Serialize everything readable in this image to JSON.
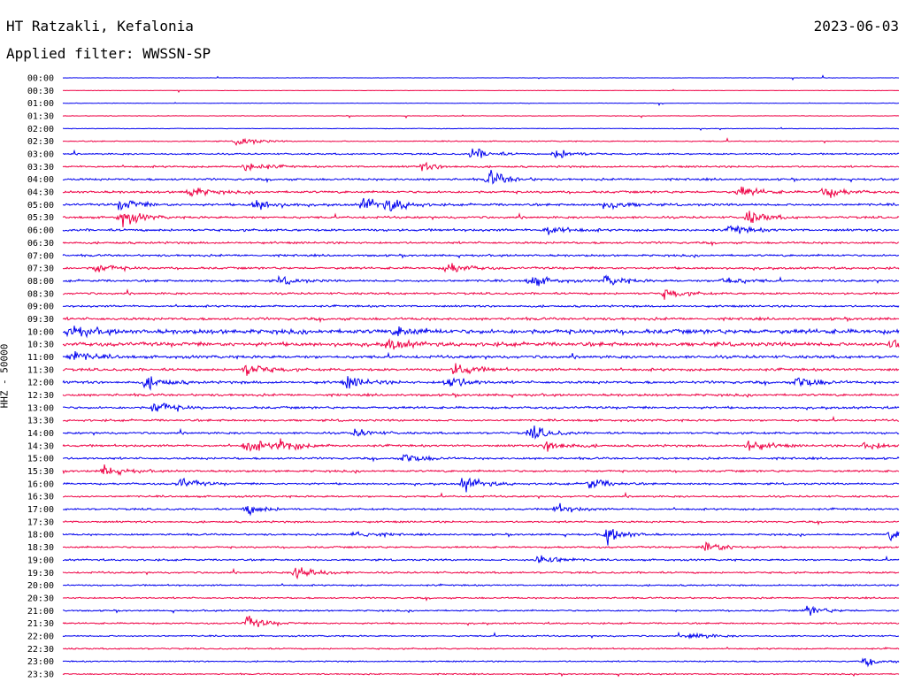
{
  "header": {
    "station": "HT Ratzakli, Kefalonia",
    "date": "2023-06-03",
    "filter": "Applied filter: WWSSN-SP"
  },
  "chart_data": {
    "type": "line",
    "title": "HT Ratzakli, Kefalonia",
    "ylabel": "HHZ - 50000",
    "colors": [
      "#0000ee",
      "#ee0044"
    ],
    "rows": [
      "00:00",
      "00:30",
      "01:00",
      "01:30",
      "02:00",
      "02:30",
      "03:00",
      "03:30",
      "04:00",
      "04:30",
      "05:00",
      "05:30",
      "06:00",
      "06:30",
      "07:00",
      "07:30",
      "08:00",
      "08:30",
      "09:00",
      "09:30",
      "10:00",
      "10:30",
      "11:00",
      "11:30",
      "12:00",
      "12:30",
      "13:00",
      "13:30",
      "14:00",
      "14:30",
      "15:00",
      "15:30",
      "16:00",
      "16:30",
      "17:00",
      "17:30",
      "18:00",
      "18:30",
      "19:00",
      "19:30",
      "20:00",
      "20:30",
      "21:00",
      "21:30",
      "22:00",
      "22:30",
      "23:00",
      "23:30"
    ],
    "noise_level": [
      0.3,
      0.3,
      0.4,
      0.4,
      0.5,
      0.8,
      1.2,
      1.4,
      1.6,
      1.8,
      1.8,
      1.7,
      1.8,
      1.6,
      1.6,
      1.7,
      1.7,
      1.6,
      1.5,
      2.0,
      3.4,
      3.0,
      2.2,
      2.0,
      2.0,
      1.8,
      1.8,
      1.6,
      1.6,
      1.7,
      1.6,
      1.6,
      1.5,
      1.4,
      1.4,
      1.4,
      1.4,
      1.4,
      1.4,
      1.4,
      1.2,
      1.2,
      1.2,
      1.2,
      1.1,
      1.1,
      1.0,
      1.0
    ],
    "events": [
      {
        "row": 5,
        "x": 0.21,
        "amp": 8
      },
      {
        "row": 6,
        "x": 0.49,
        "amp": 10
      },
      {
        "row": 6,
        "x": 0.59,
        "amp": 9
      },
      {
        "row": 7,
        "x": 0.22,
        "amp": 9
      },
      {
        "row": 7,
        "x": 0.43,
        "amp": 6
      },
      {
        "row": 8,
        "x": 0.51,
        "amp": 14
      },
      {
        "row": 9,
        "x": 0.15,
        "amp": 10
      },
      {
        "row": 9,
        "x": 0.81,
        "amp": 9
      },
      {
        "row": 9,
        "x": 0.91,
        "amp": 10
      },
      {
        "row": 10,
        "x": 0.07,
        "amp": 10
      },
      {
        "row": 10,
        "x": 0.23,
        "amp": 10
      },
      {
        "row": 10,
        "x": 0.36,
        "amp": 12
      },
      {
        "row": 10,
        "x": 0.39,
        "amp": 10
      },
      {
        "row": 10,
        "x": 0.65,
        "amp": 9
      },
      {
        "row": 11,
        "x": 0.07,
        "amp": 14
      },
      {
        "row": 11,
        "x": 0.82,
        "amp": 11
      },
      {
        "row": 12,
        "x": 0.58,
        "amp": 10
      },
      {
        "row": 12,
        "x": 0.8,
        "amp": 8
      },
      {
        "row": 15,
        "x": 0.04,
        "amp": 8
      },
      {
        "row": 15,
        "x": 0.46,
        "amp": 10
      },
      {
        "row": 16,
        "x": 0.26,
        "amp": 6
      },
      {
        "row": 16,
        "x": 0.56,
        "amp": 10
      },
      {
        "row": 16,
        "x": 0.65,
        "amp": 8
      },
      {
        "row": 16,
        "x": 0.79,
        "amp": 8
      },
      {
        "row": 17,
        "x": 0.72,
        "amp": 8
      },
      {
        "row": 20,
        "x": 0.01,
        "amp": 10
      },
      {
        "row": 20,
        "x": 0.4,
        "amp": 8
      },
      {
        "row": 21,
        "x": 0.39,
        "amp": 9
      },
      {
        "row": 21,
        "x": 0.99,
        "amp": 9
      },
      {
        "row": 22,
        "x": 0.01,
        "amp": 10
      },
      {
        "row": 23,
        "x": 0.22,
        "amp": 11
      },
      {
        "row": 23,
        "x": 0.47,
        "amp": 11
      },
      {
        "row": 24,
        "x": 0.1,
        "amp": 10
      },
      {
        "row": 24,
        "x": 0.34,
        "amp": 10
      },
      {
        "row": 24,
        "x": 0.46,
        "amp": 12
      },
      {
        "row": 24,
        "x": 0.88,
        "amp": 11
      },
      {
        "row": 26,
        "x": 0.11,
        "amp": 12
      },
      {
        "row": 28,
        "x": 0.56,
        "amp": 12
      },
      {
        "row": 28,
        "x": 0.35,
        "amp": 6
      },
      {
        "row": 29,
        "x": 0.22,
        "amp": 12
      },
      {
        "row": 29,
        "x": 0.26,
        "amp": 11
      },
      {
        "row": 29,
        "x": 0.58,
        "amp": 11
      },
      {
        "row": 29,
        "x": 0.82,
        "amp": 10
      },
      {
        "row": 29,
        "x": 0.96,
        "amp": 8
      },
      {
        "row": 30,
        "x": 0.41,
        "amp": 9
      },
      {
        "row": 31,
        "x": 0.05,
        "amp": 9
      },
      {
        "row": 32,
        "x": 0.14,
        "amp": 9
      },
      {
        "row": 32,
        "x": 0.48,
        "amp": 13
      },
      {
        "row": 32,
        "x": 0.63,
        "amp": 10
      },
      {
        "row": 34,
        "x": 0.22,
        "amp": 9
      },
      {
        "row": 34,
        "x": 0.59,
        "amp": 8
      },
      {
        "row": 36,
        "x": 0.65,
        "amp": 14
      },
      {
        "row": 36,
        "x": 0.35,
        "amp": 8
      },
      {
        "row": 36,
        "x": 0.99,
        "amp": 8
      },
      {
        "row": 37,
        "x": 0.77,
        "amp": 11
      },
      {
        "row": 38,
        "x": 0.57,
        "amp": 12
      },
      {
        "row": 39,
        "x": 0.28,
        "amp": 14
      },
      {
        "row": 42,
        "x": 0.89,
        "amp": 8
      },
      {
        "row": 43,
        "x": 0.22,
        "amp": 11
      },
      {
        "row": 44,
        "x": 0.75,
        "amp": 7
      },
      {
        "row": 46,
        "x": 0.96,
        "amp": 6
      }
    ]
  }
}
